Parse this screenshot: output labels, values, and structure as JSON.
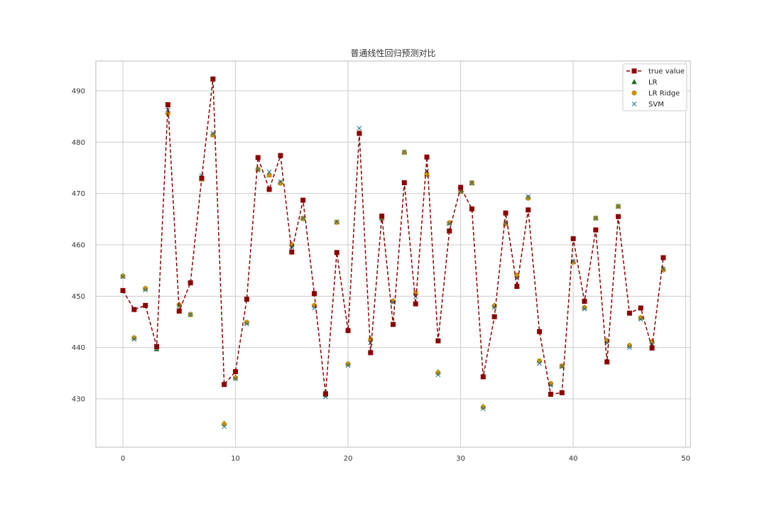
{
  "chart_data": {
    "type": "line",
    "title": "普通线性回归预测对比",
    "xlabel": "",
    "ylabel": "",
    "xlim": [
      -2.4,
      50.4
    ],
    "ylim": [
      420.6,
      495.8
    ],
    "x_ticks": [
      0,
      10,
      20,
      30,
      40,
      50
    ],
    "y_ticks": [
      430,
      440,
      450,
      460,
      470,
      480,
      490
    ],
    "grid": true,
    "legend_position": "top-right",
    "x": [
      0,
      1,
      2,
      3,
      4,
      5,
      6,
      7,
      8,
      9,
      10,
      11,
      12,
      13,
      14,
      15,
      16,
      17,
      18,
      19,
      20,
      21,
      22,
      23,
      24,
      25,
      26,
      27,
      28,
      29,
      30,
      31,
      32,
      33,
      34,
      35,
      36,
      37,
      38,
      39,
      40,
      41,
      42,
      43,
      44,
      45,
      46,
      47,
      48
    ],
    "series": [
      {
        "name": "true value",
        "marker": "square",
        "line": "dashed",
        "color": "#8b0000",
        "values": [
          451.1,
          447.4,
          448.2,
          440.2,
          487.3,
          447.1,
          452.6,
          473.0,
          492.3,
          432.8,
          435.3,
          449.4,
          477.0,
          470.8,
          477.4,
          458.6,
          468.7,
          450.5,
          431.0,
          458.5,
          443.3,
          481.7,
          439.0,
          465.6,
          444.5,
          472.1,
          448.5,
          477.1,
          441.3,
          462.7,
          471.2,
          467.0,
          434.3,
          446.0,
          466.2,
          451.9,
          466.8,
          443.1,
          430.9,
          431.2,
          461.2,
          449.0,
          462.9,
          437.2,
          465.5,
          446.7,
          447.7,
          439.9,
          457.5
        ]
      },
      {
        "name": "LR",
        "marker": "triangle",
        "color": "#1a6f1a",
        "values": [
          454.0,
          441.9,
          451.5,
          439.7,
          485.8,
          448.4,
          446.5,
          472.8,
          481.4,
          425.2,
          434.2,
          444.9,
          474.8,
          473.6,
          472.1,
          460.1,
          465.2,
          448.2,
          430.8,
          464.4,
          436.8,
          481.8,
          441.7,
          465.2,
          449.1,
          478.0,
          450.6,
          473.8,
          435.2,
          464.3,
          470.4,
          472.0,
          428.5,
          448.2,
          464.1,
          454.1,
          469.2,
          437.4,
          432.9,
          436.4,
          456.7,
          447.8,
          465.2,
          441.4,
          467.5,
          440.4,
          445.8,
          441.2,
          455.3
        ]
      },
      {
        "name": "LR Ridge",
        "marker": "circle",
        "color": "#c8900a",
        "values": [
          453.9,
          441.9,
          451.5,
          439.9,
          485.6,
          448.3,
          446.4,
          472.8,
          481.4,
          425.1,
          434.1,
          444.9,
          474.7,
          473.6,
          472.0,
          460.0,
          465.1,
          448.2,
          430.9,
          464.4,
          436.8,
          481.7,
          441.6,
          465.1,
          449.0,
          478.0,
          450.6,
          473.7,
          435.1,
          464.3,
          470.4,
          472.1,
          428.4,
          448.1,
          464.1,
          454.1,
          469.1,
          437.4,
          433.0,
          436.4,
          456.6,
          447.8,
          465.2,
          441.3,
          467.5,
          440.4,
          445.8,
          441.1,
          455.1
        ]
      },
      {
        "name": "SVM",
        "marker": "x",
        "color": "#1f6f8b",
        "values": [
          453.8,
          441.6,
          451.2,
          439.7,
          486.3,
          448.1,
          446.4,
          473.5,
          481.7,
          424.6,
          433.9,
          444.6,
          474.6,
          474.2,
          472.3,
          459.6,
          465.2,
          447.7,
          430.4,
          464.5,
          436.5,
          482.7,
          440.9,
          465.2,
          448.8,
          478.1,
          449.9,
          474.4,
          434.7,
          464.1,
          470.4,
          472.1,
          428.1,
          447.8,
          464.3,
          453.5,
          469.4,
          436.9,
          432.6,
          436.3,
          456.8,
          447.5,
          465.2,
          440.9,
          467.5,
          440.0,
          445.5,
          440.7,
          455.3
        ]
      }
    ]
  }
}
